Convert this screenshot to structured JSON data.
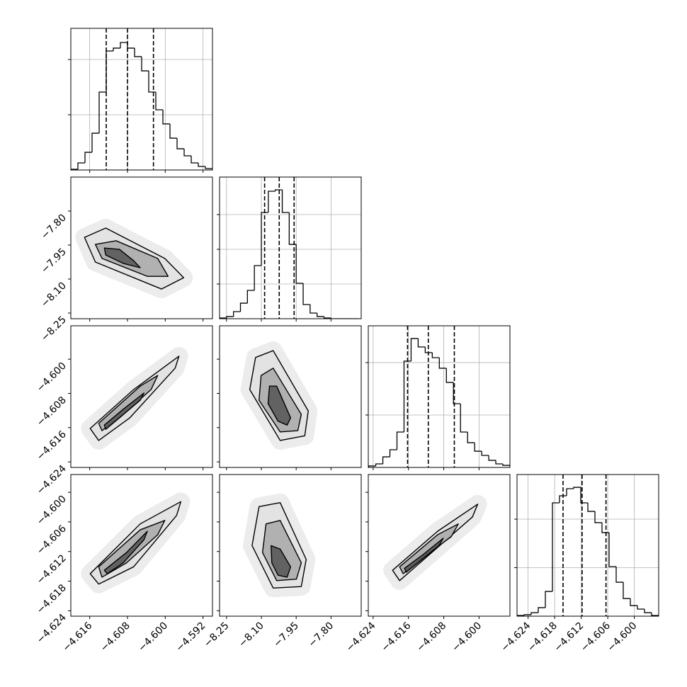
{
  "chart_data": [
    {
      "type": "histogram",
      "color": "#000000",
      "grid": true,
      "bins": [
        -4.62,
        -4.6185,
        -4.617,
        -4.6155,
        -4.614,
        -4.6125,
        -4.611,
        -4.6095,
        -4.608,
        -4.6065,
        -4.605,
        -4.6035,
        -4.602,
        -4.6005,
        -4.599,
        -4.5975,
        -4.596,
        -4.5945,
        -4.593,
        -4.5915,
        -4.59
      ],
      "values": [
        6,
        64,
        160,
        333,
        705,
        1077,
        1103,
        1154,
        1103,
        1026,
        897,
        705,
        545,
        417,
        288,
        192,
        128,
        64,
        32,
        13
      ],
      "quantiles": [
        -4.6125,
        -4.608,
        -4.6025
      ],
      "xlim": [
        -4.62,
        -4.59
      ],
      "ylim": [
        0,
        1282
      ],
      "xticks": [
        -4.616,
        -4.608,
        -4.6,
        -4.592
      ],
      "yticks": [
        500,
        1000
      ]
    },
    {
      "type": "contour",
      "color": "#000000",
      "fills": [
        "#e2e2e2",
        "#a8a8a8",
        "#555555"
      ],
      "contours": [
        {
          "x": [
            -4.6171,
            -4.6126,
            -4.6001,
            -4.5961,
            -4.6008,
            -4.6148
          ],
          "y": [
            -7.916,
            -7.875,
            -8.009,
            -8.094,
            -8.144,
            -8.025
          ]
        },
        {
          "x": [
            -4.6148,
            -4.6104,
            -4.6016,
            -4.5994,
            -4.6038,
            -4.6134
          ],
          "y": [
            -7.947,
            -7.931,
            -8.009,
            -8.088,
            -8.088,
            -8.009
          ]
        },
        {
          "x": [
            -4.6129,
            -4.6097,
            -4.6067,
            -4.6053,
            -4.6089,
            -4.6126
          ],
          "y": [
            -7.963,
            -7.969,
            -8.019,
            -8.05,
            -8.031,
            -7.994
          ]
        }
      ],
      "xlim": [
        -4.62,
        -4.59
      ],
      "ylim": [
        -8.275,
        -7.65
      ],
      "xticks": [
        -4.616,
        -4.608,
        -4.6,
        -4.592
      ],
      "yticks": [
        {
          "value": -8.25,
          "label": "−8.25"
        },
        {
          "value": -8.1,
          "label": "−8.10"
        },
        {
          "value": -7.95,
          "label": "−7.95"
        },
        {
          "value": -7.8,
          "label": "−7.80"
        }
      ]
    },
    {
      "type": "histogram",
      "color": "#000000",
      "grid": true,
      "bins": [
        -8.28,
        -8.25,
        -8.22,
        -8.19,
        -8.16,
        -8.13,
        -8.1,
        -8.07,
        -8.04,
        -8.01,
        -7.98,
        -7.95,
        -7.92,
        -7.89,
        -7.86,
        -7.83,
        -7.8,
        -7.77,
        -7.74,
        -7.71,
        -7.68
      ],
      "values": [
        10,
        31,
        102,
        224,
        408,
        765,
        1531,
        1837,
        1857,
        1531,
        1071,
        510,
        204,
        82,
        31,
        10,
        0,
        0,
        0,
        0
      ],
      "quantiles": [
        -8.086,
        -8.023,
        -7.959
      ],
      "xlim": [
        -8.28,
        -7.67
      ],
      "ylim": [
        0,
        2041
      ],
      "xticks": [
        -8.25,
        -8.1,
        -7.95,
        -7.8
      ],
      "yticks": [
        500,
        1000,
        1500
      ]
    },
    {
      "type": "contour",
      "color": "#000000",
      "fills": [
        "#e2e2e2",
        "#a8a8a8",
        "#555555"
      ],
      "contours": [
        {
          "x": [
            -4.6159,
            -4.6067,
            -4.5971,
            -4.5979,
            -4.6075,
            -4.6141
          ],
          "y": [
            -4.6162,
            -4.6071,
            -4.5993,
            -4.6021,
            -4.6137,
            -4.619
          ]
        },
        {
          "x": [
            -4.6141,
            -4.6053,
            -4.6016,
            -4.603,
            -4.6089,
            -4.6134
          ],
          "y": [
            -4.615,
            -4.6063,
            -4.6038,
            -4.6071,
            -4.6129,
            -4.6167
          ]
        },
        {
          "x": [
            -4.6129,
            -4.6089,
            -4.6045,
            -4.6053,
            -4.6097,
            -4.6126
          ],
          "y": [
            -4.6154,
            -4.6117,
            -4.6079,
            -4.6096,
            -4.6137,
            -4.6164
          ]
        }
      ],
      "xlim": [
        -4.62,
        -4.59
      ],
      "ylim": [
        -4.6253,
        -4.5922
      ],
      "xticks": [
        -4.616,
        -4.608,
        -4.6,
        -4.592
      ],
      "yticks": [
        {
          "value": -4.624,
          "label": "−4.624"
        },
        {
          "value": -4.616,
          "label": "−4.616"
        },
        {
          "value": -4.608,
          "label": "−4.608"
        },
        {
          "value": -4.6,
          "label": "−4.600"
        }
      ]
    },
    {
      "type": "contour",
      "color": "#000000",
      "fills": [
        "#e2e2e2",
        "#a8a8a8",
        "#555555"
      ],
      "contours": [
        {
          "x": [
            -8.125,
            -8.049,
            -7.898,
            -7.913,
            -8.019,
            -8.15
          ],
          "y": [
            -4.5996,
            -4.598,
            -4.6121,
            -4.6179,
            -4.619,
            -4.6071
          ]
        },
        {
          "x": [
            -8.101,
            -8.049,
            -7.928,
            -7.943,
            -8.019,
            -8.11
          ],
          "y": [
            -4.6038,
            -4.6021,
            -4.6129,
            -4.6167,
            -4.617,
            -4.6096
          ]
        },
        {
          "x": [
            -8.065,
            -8.034,
            -7.974,
            -7.989,
            -8.028,
            -8.071
          ],
          "y": [
            -4.6063,
            -4.6063,
            -4.6137,
            -4.6154,
            -4.6145,
            -4.6104
          ]
        }
      ],
      "xlim": [
        -8.28,
        -7.67
      ],
      "ylim": [
        -4.6253,
        -4.5922
      ],
      "xticks": [
        -8.25,
        -8.1,
        -7.95,
        -7.8
      ],
      "yticks": [
        -4.624,
        -4.616,
        -4.608,
        -4.6
      ]
    },
    {
      "type": "histogram",
      "color": "#000000",
      "grid": true,
      "bins": [
        -4.625,
        -4.6234,
        -4.6218,
        -4.6202,
        -4.6186,
        -4.617,
        -4.6154,
        -4.6138,
        -4.6122,
        -4.6106,
        -4.609,
        -4.6074,
        -4.6058,
        -4.6042,
        -4.6026,
        -4.601,
        -4.5994,
        -4.5978,
        -4.5962,
        -4.5946,
        -4.593
      ],
      "values": [
        14,
        34,
        101,
        169,
        338,
        1014,
        1230,
        1149,
        1095,
        1047,
        946,
        811,
        608,
        338,
        236,
        155,
        115,
        68,
        34,
        20
      ],
      "quantiles": [
        -4.6162,
        -4.6115,
        -4.6056
      ],
      "xlim": [
        -4.6251,
        -4.593
      ],
      "ylim": [
        0,
        1351
      ],
      "xticks": [
        -4.624,
        -4.616,
        -4.608,
        -4.6
      ],
      "yticks": [
        500,
        1000
      ]
    },
    {
      "type": "contour",
      "color": "#000000",
      "fills": [
        "#e2e2e2",
        "#a8a8a8",
        "#555555"
      ],
      "contours": [
        {
          "x": [
            -4.6159,
            -4.6053,
            -4.5967,
            -4.5976,
            -4.6067,
            -4.6141
          ],
          "y": [
            -4.6165,
            -4.6064,
            -4.6019,
            -4.6047,
            -4.6151,
            -4.6186
          ]
        },
        {
          "x": [
            -4.6141,
            -4.6053,
            -4.6001,
            -4.6016,
            -4.6082,
            -4.6134
          ],
          "y": [
            -4.6151,
            -4.6076,
            -4.6057,
            -4.6086,
            -4.6143,
            -4.6172
          ]
        },
        {
          "x": [
            -4.6129,
            -4.6082,
            -4.6038,
            -4.6045,
            -4.6089,
            -4.6123
          ],
          "y": [
            -4.6158,
            -4.6122,
            -4.6079,
            -4.6096,
            -4.6143,
            -4.6165
          ]
        }
      ],
      "xlim": [
        -4.62,
        -4.59
      ],
      "ylim": [
        -4.6251,
        -4.5964
      ],
      "xticks": [
        {
          "value": -4.616,
          "label": "−4.616"
        },
        {
          "value": -4.608,
          "label": "−4.608"
        },
        {
          "value": -4.6,
          "label": "−4.600"
        },
        {
          "value": -4.592,
          "label": "−4.592"
        }
      ],
      "yticks": [
        {
          "value": -4.624,
          "label": "−4.624"
        },
        {
          "value": -4.618,
          "label": "−4.618"
        },
        {
          "value": -4.612,
          "label": "−4.612"
        },
        {
          "value": -4.606,
          "label": "−4.606"
        },
        {
          "value": -4.6,
          "label": "−4.600"
        }
      ]
    },
    {
      "type": "contour",
      "color": "#000000",
      "fills": [
        "#e2e2e2",
        "#a8a8a8",
        "#555555"
      ],
      "contours": [
        {
          "x": [
            -8.11,
            -8.019,
            -7.907,
            -7.928,
            -8.049,
            -8.14
          ],
          "y": [
            -4.6029,
            -4.6021,
            -4.6136,
            -4.6191,
            -4.6194,
            -4.6108
          ]
        },
        {
          "x": [
            -8.08,
            -8.019,
            -7.928,
            -7.949,
            -8.034,
            -8.095
          ],
          "y": [
            -4.6064,
            -4.6057,
            -4.6143,
            -4.6176,
            -4.6179,
            -4.6122
          ]
        },
        {
          "x": [
            -8.058,
            -8.019,
            -7.974,
            -7.989,
            -8.028,
            -8.055
          ],
          "y": [
            -4.6108,
            -4.6115,
            -4.6151,
            -4.6172,
            -4.6168,
            -4.6143
          ]
        }
      ],
      "xlim": [
        -8.28,
        -7.67
      ],
      "ylim": [
        -4.6251,
        -4.5964
      ],
      "xticks": [
        {
          "value": -8.25,
          "label": "−8.25"
        },
        {
          "value": -8.1,
          "label": "−8.10"
        },
        {
          "value": -7.95,
          "label": "−7.95"
        },
        {
          "value": -7.8,
          "label": "−7.80"
        }
      ],
      "yticks": [
        -4.624,
        -4.618,
        -4.612,
        -4.606,
        -4.6
      ]
    },
    {
      "type": "contour",
      "color": "#000000",
      "fills": [
        "#e2e2e2",
        "#a8a8a8",
        "#555555"
      ],
      "contours": [
        {
          "x": [
            -4.6196,
            -4.6094,
            -4.6003,
            -4.6015,
            -4.6125,
            -4.618
          ],
          "y": [
            -4.6158,
            -4.6079,
            -4.6024,
            -4.605,
            -4.6136,
            -4.6179
          ]
        },
        {
          "x": [
            -4.618,
            -4.6094,
            -4.6047,
            -4.6063,
            -4.6133,
            -4.6172
          ],
          "y": [
            -4.6151,
            -4.6086,
            -4.6064,
            -4.609,
            -4.6136,
            -4.6165
          ]
        },
        {
          "x": [
            -4.6169,
            -4.6125,
            -4.6081,
            -4.6091,
            -4.6133,
            -4.6165
          ],
          "y": [
            -4.6154,
            -4.6125,
            -4.6093,
            -4.6108,
            -4.6139,
            -4.6162
          ]
        }
      ],
      "xlim": [
        -4.6251,
        -4.593
      ],
      "ylim": [
        -4.6251,
        -4.5964
      ],
      "xticks": [
        {
          "value": -4.624,
          "label": "−4.624"
        },
        {
          "value": -4.616,
          "label": "−4.616"
        },
        {
          "value": -4.608,
          "label": "−4.608"
        },
        {
          "value": -4.6,
          "label": "−4.600"
        }
      ],
      "yticks": [
        -4.624,
        -4.618,
        -4.612,
        -4.606,
        -4.6
      ]
    },
    {
      "type": "histogram",
      "color": "#000000",
      "grid": true,
      "bins": [
        -4.6265,
        -4.6249,
        -4.6233,
        -4.6217,
        -4.6201,
        -4.6185,
        -4.6169,
        -4.6153,
        -4.6137,
        -4.6121,
        -4.6105,
        -4.6089,
        -4.6073,
        -4.6057,
        -4.6041,
        -4.6025,
        -4.6009,
        -4.5993,
        -4.5977,
        -4.5961,
        -4.5945
      ],
      "values": [
        7,
        15,
        36,
        88,
        255,
        1168,
        1241,
        1314,
        1328,
        1168,
        1080,
        964,
        861,
        511,
        350,
        182,
        109,
        73,
        36,
        7
      ],
      "quantiles": [
        -4.6161,
        -4.6118,
        -4.6064
      ],
      "xlim": [
        -4.6265,
        -4.5945
      ],
      "ylim": [
        0,
        1460
      ],
      "xticks": [
        {
          "value": -4.624,
          "label": "−4.624"
        },
        {
          "value": -4.618,
          "label": "−4.618"
        },
        {
          "value": -4.612,
          "label": "−4.612"
        },
        {
          "value": -4.606,
          "label": "−4.606"
        },
        {
          "value": -4.6,
          "label": "−4.600"
        }
      ],
      "yticks": [
        500,
        1000
      ]
    }
  ]
}
